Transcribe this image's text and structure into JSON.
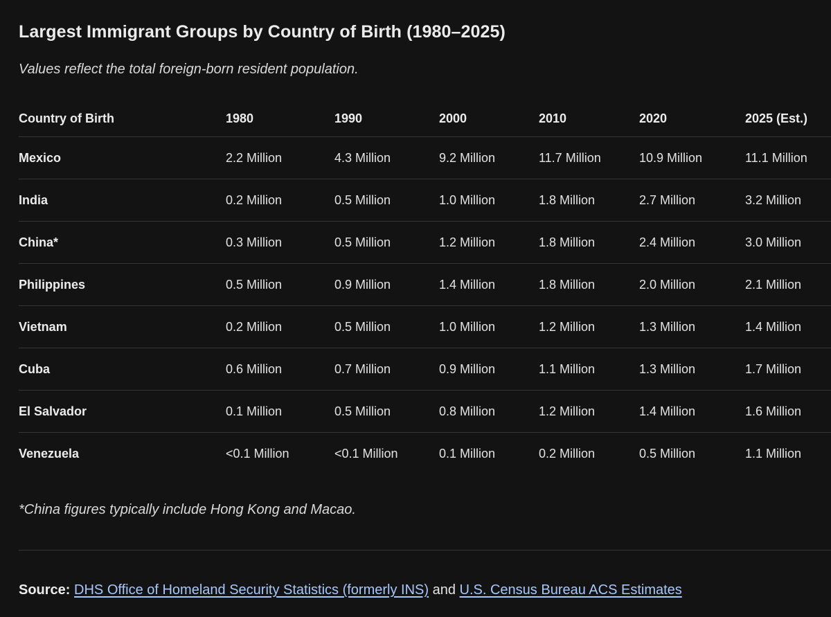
{
  "title": "Largest Immigrant Groups by Country of Birth (1980–2025)",
  "subtitle": "Values reflect the total foreign-born resident population.",
  "table": {
    "headers": [
      "Country of Birth",
      "1980",
      "1990",
      "2000",
      "2010",
      "2020",
      "2025 (Est.)"
    ],
    "rows": [
      [
        "Mexico",
        "2.2 Million",
        "4.3 Million",
        "9.2 Million",
        "11.7 Million",
        "10.9 Million",
        "11.1 Million"
      ],
      [
        "India",
        "0.2 Million",
        "0.5 Million",
        "1.0 Million",
        "1.8 Million",
        "2.7 Million",
        "3.2 Million"
      ],
      [
        "China*",
        "0.3 Million",
        "0.5 Million",
        "1.2 Million",
        "1.8 Million",
        "2.4 Million",
        "3.0 Million"
      ],
      [
        "Philippines",
        "0.5 Million",
        "0.9 Million",
        "1.4 Million",
        "1.8 Million",
        "2.0 Million",
        "2.1 Million"
      ],
      [
        "Vietnam",
        "0.2 Million",
        "0.5 Million",
        "1.0 Million",
        "1.2 Million",
        "1.3 Million",
        "1.4 Million"
      ],
      [
        "Cuba",
        "0.6 Million",
        "0.7 Million",
        "0.9 Million",
        "1.1 Million",
        "1.3 Million",
        "1.7 Million"
      ],
      [
        "El Salvador",
        "0.1 Million",
        "0.5 Million",
        "0.8 Million",
        "1.2 Million",
        "1.4 Million",
        "1.6 Million"
      ],
      [
        "Venezuela",
        "<0.1 Million",
        "<0.1 Million",
        "0.1 Million",
        "0.2 Million",
        "0.5 Million",
        "1.1 Million"
      ]
    ]
  },
  "footnote": "*China figures typically include Hong Kong and Macao.",
  "source": {
    "label": "Source:",
    "link1": "DHS Office of Homeland Security Statistics (formerly INS)",
    "connector": "and",
    "link2": "U.S. Census Bureau ACS Estimates"
  },
  "colors": {
    "background": "#131314",
    "text": "#e3e3e3",
    "link": "#a8c7fa",
    "divider": "#333538"
  }
}
